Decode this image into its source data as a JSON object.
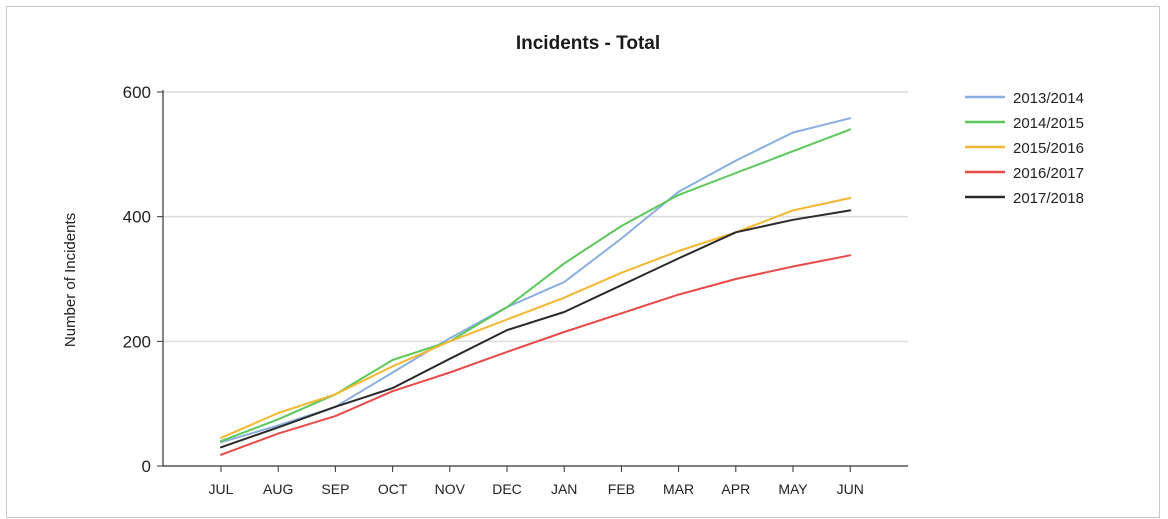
{
  "chart_data": {
    "type": "line",
    "title": "Incidents - Total",
    "xlabel": "",
    "ylabel": "Number of Incidents",
    "ylim": [
      0,
      600
    ],
    "yticks": [
      "0",
      "200",
      "400",
      "600"
    ],
    "grid": true,
    "legend_position": "right",
    "categories": [
      "JUL",
      "AUG",
      "SEP",
      "OCT",
      "NOV",
      "DEC",
      "JAN",
      "FEB",
      "MAR",
      "APR",
      "MAY",
      "JUN"
    ],
    "series": [
      {
        "name": "2013/2014",
        "color": "#8aaee0",
        "values": [
          38,
          65,
          95,
          150,
          205,
          255,
          295,
          365,
          440,
          490,
          535,
          558
        ]
      },
      {
        "name": "2014/2015",
        "color": "#5cc85c",
        "values": [
          40,
          75,
          115,
          170,
          200,
          255,
          325,
          385,
          435,
          470,
          505,
          540
        ]
      },
      {
        "name": "2015/2016",
        "color": "#f5b731",
        "values": [
          45,
          85,
          115,
          160,
          200,
          235,
          270,
          310,
          345,
          375,
          410,
          430
        ]
      },
      {
        "name": "2016/2017",
        "color": "#e84a4a",
        "values": [
          18,
          52,
          80,
          120,
          150,
          183,
          215,
          245,
          275,
          300,
          320,
          338
        ]
      },
      {
        "name": "2017/2018",
        "color": "#2a2a2a",
        "values": [
          30,
          62,
          95,
          125,
          172,
          218,
          247,
          290,
          333,
          375,
          395,
          410
        ]
      }
    ]
  }
}
